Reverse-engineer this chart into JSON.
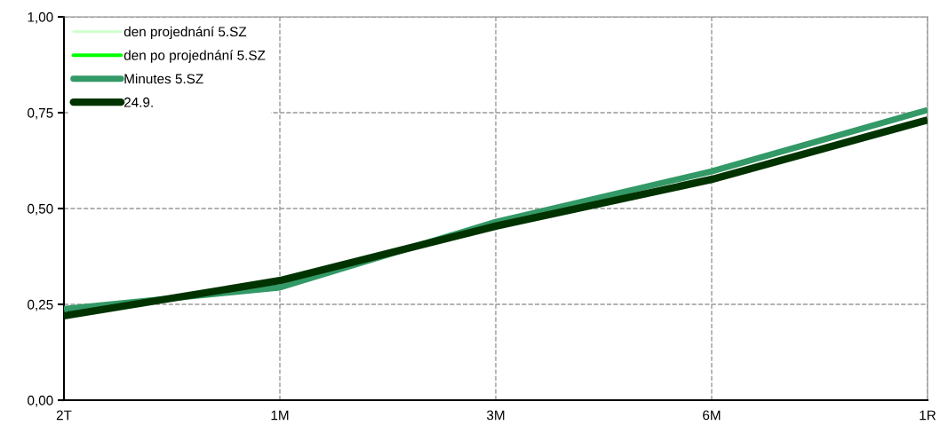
{
  "chart_data": {
    "type": "line",
    "categories": [
      "2T",
      "1M",
      "3M",
      "6M",
      "1R"
    ],
    "series": [
      {
        "name": "den projednání 5.SZ",
        "color": "#ccffcc",
        "values": [
          null,
          null,
          null,
          null,
          null
        ]
      },
      {
        "name": "den po projednání 5.SZ",
        "color": "#00ff00",
        "values": [
          null,
          null,
          null,
          null,
          null
        ]
      },
      {
        "name": "Minutes 5.SZ",
        "color": "#339966",
        "values": [
          0.238,
          0.294,
          0.465,
          0.597,
          0.757
        ]
      },
      {
        "name": "24.9.",
        "color": "#003300",
        "values": [
          0.22,
          0.312,
          0.454,
          0.576,
          0.731
        ]
      }
    ],
    "ylim": [
      0,
      1
    ],
    "yticks": [
      {
        "value": 0,
        "label": "0,00"
      },
      {
        "value": 0.25,
        "label": "0,25"
      },
      {
        "value": 0.5,
        "label": "0,50"
      },
      {
        "value": 0.75,
        "label": "0,75"
      },
      {
        "value": 1,
        "label": "1,00"
      }
    ],
    "grid": true,
    "legend": "top left",
    "line_style": "solid",
    "marker": "none"
  }
}
